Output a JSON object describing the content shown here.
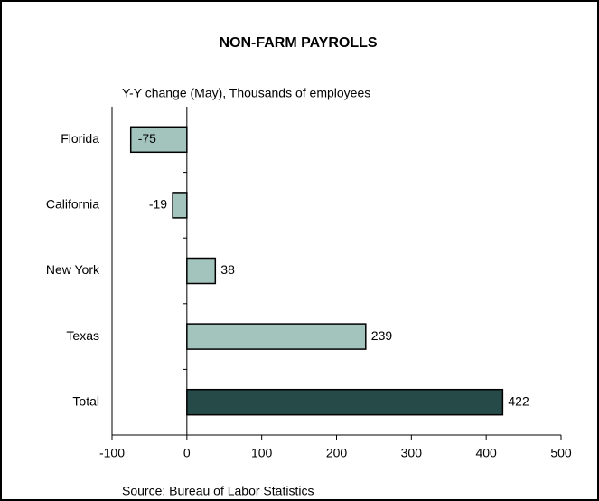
{
  "chart_data": {
    "type": "bar",
    "orientation": "horizontal",
    "title": "NON-FARM PAYROLLS",
    "subtitle": "Y-Y change (May), Thousands of employees",
    "source": "Source: Bureau of Labor Statistics",
    "categories": [
      "Florida",
      "California",
      "New York",
      "Texas",
      "Total"
    ],
    "values": [
      -75,
      -19,
      38,
      239,
      422
    ],
    "colors": [
      "#a3c4bc",
      "#a3c4bc",
      "#a3c4bc",
      "#a3c4bc",
      "#264a47"
    ],
    "xlim": [
      -100,
      500
    ],
    "xticks": [
      -100,
      0,
      100,
      200,
      300,
      400,
      500
    ],
    "grid": false
  }
}
